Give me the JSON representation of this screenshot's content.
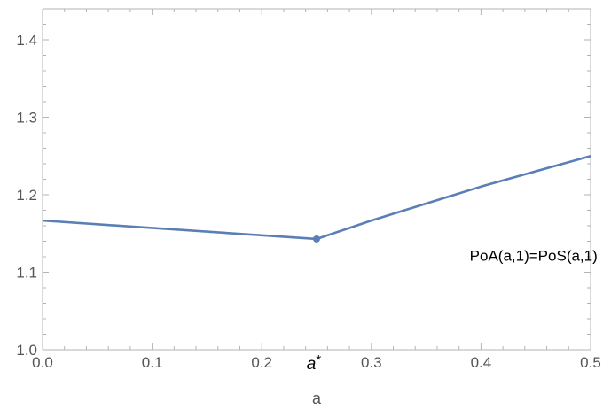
{
  "chart_data": {
    "type": "line",
    "xlabel": "a",
    "ylabel": "",
    "xlim": [
      0,
      0.5
    ],
    "ylim": [
      1.0,
      1.44
    ],
    "x_ticks": [
      {
        "value": 0.0,
        "label": "0.0"
      },
      {
        "value": 0.1,
        "label": "0.1"
      },
      {
        "value": 0.2,
        "label": "0.2"
      },
      {
        "value": 0.3,
        "label": "0.3"
      },
      {
        "value": 0.4,
        "label": "0.4"
      },
      {
        "value": 0.5,
        "label": "0.5"
      }
    ],
    "y_ticks": [
      {
        "value": 1.0,
        "label": "1.0"
      },
      {
        "value": 1.1,
        "label": "1.1"
      },
      {
        "value": 1.2,
        "label": "1.2"
      },
      {
        "value": 1.3,
        "label": "1.3"
      },
      {
        "value": 1.4,
        "label": "1.4"
      }
    ],
    "grid": false,
    "series": [
      {
        "color": "#5b7fb5",
        "points": [
          {
            "x": 0.0,
            "y": 1.1667
          },
          {
            "x": 0.25,
            "y": 1.1429
          },
          {
            "x": 0.3,
            "y": 1.1667
          },
          {
            "x": 0.4,
            "y": 1.2105
          },
          {
            "x": 0.5,
            "y": 1.25
          }
        ]
      }
    ],
    "highlight_point": {
      "x": 0.25,
      "y": 1.1429,
      "label": "a*",
      "color": "#5b7fb5"
    },
    "annotations": [
      {
        "text": "PoA(a,1)=PoS(a,1)",
        "x": 0.448,
        "y": 1.115
      }
    ]
  }
}
